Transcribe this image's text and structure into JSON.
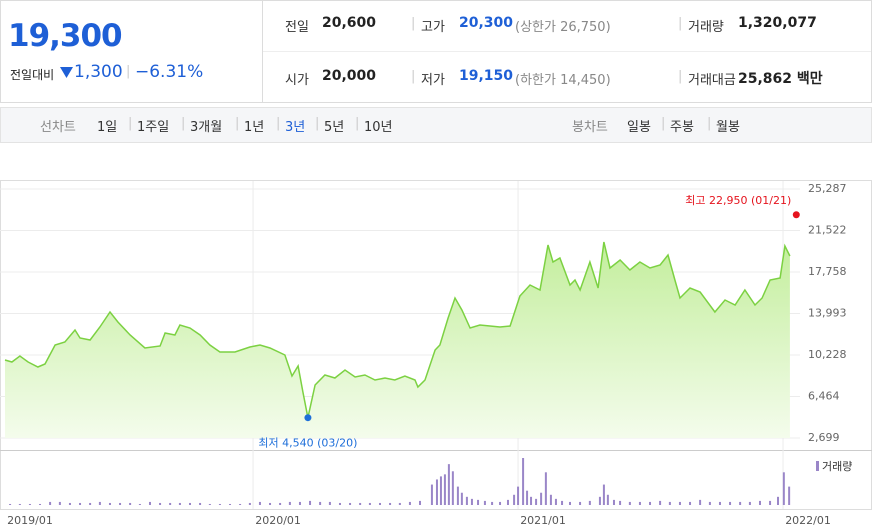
{
  "header": {
    "price": "19,300",
    "change_label": "전일대비",
    "change": "1,300",
    "change_pct": "−6.31%"
  },
  "quotes": [
    [
      {
        "label": "전일",
        "value": "20,600"
      },
      {
        "label": "고가",
        "value": "20,300",
        "limit": "(상한가 26,750)"
      },
      {
        "label": "거래량",
        "value": "1,320,077"
      }
    ],
    [
      {
        "label": "시가",
        "value": "20,000"
      },
      {
        "label": "저가",
        "value": "19,150",
        "limit": "(하한가 14,450)"
      },
      {
        "label": "거래대금",
        "value": "25,862 백만"
      }
    ]
  ],
  "tabs": {
    "line_label": "선차트",
    "line_options": [
      "1일",
      "1주일",
      "3개월",
      "1년",
      "3년",
      "5년",
      "10년"
    ],
    "selected": 4,
    "candle_label": "봉차트",
    "candle_options": [
      "일봉",
      "주봉",
      "월봉"
    ]
  },
  "chart_data": [
    {
      "type": "line",
      "color": "#7cd142",
      "xlim": [
        2019.045,
        2022.064
      ],
      "xticks": [
        {
          "value": 2019,
          "label": "2019/01"
        },
        {
          "value": 2020,
          "label": "2020/01"
        },
        {
          "value": 2021,
          "label": "2021/01"
        },
        {
          "value": 2022,
          "label": "2022/01"
        }
      ],
      "ylim": [
        2699,
        25287
      ],
      "yticks": [
        {
          "value": 25287,
          "label": "25,287"
        },
        {
          "value": 21522,
          "label": "21,522"
        },
        {
          "value": 17758,
          "label": "17,758"
        },
        {
          "value": 13993,
          "label": "13,993"
        },
        {
          "value": 10228,
          "label": "10,228"
        },
        {
          "value": 6464,
          "label": "6,464"
        },
        {
          "value": 2699,
          "label": "2,699"
        }
      ],
      "grid": true,
      "x": [
        2019.064,
        2019.09,
        2019.12,
        2019.151,
        2019.188,
        2019.215,
        2019.253,
        2019.29,
        2019.328,
        2019.347,
        2019.385,
        2019.422,
        2019.46,
        2019.49,
        2019.536,
        2019.592,
        2019.649,
        2019.668,
        2019.705,
        2019.724,
        2019.762,
        2019.8,
        2019.837,
        2019.875,
        2019.932,
        2019.988,
        2020.026,
        2020.064,
        2020.12,
        2020.147,
        2020.17,
        2020.188,
        2020.207,
        2020.234,
        2020.271,
        2020.309,
        2020.347,
        2020.385,
        2020.422,
        2020.46,
        2020.498,
        2020.535,
        2020.573,
        2020.611,
        2020.622,
        2020.649,
        2020.687,
        2020.705,
        2020.736,
        2020.762,
        2020.788,
        2020.819,
        2020.856,
        2020.894,
        2020.932,
        2020.97,
        2021.007,
        2021.045,
        2021.083,
        2021.113,
        2021.132,
        2021.158,
        2021.196,
        2021.215,
        2021.234,
        2021.271,
        2021.302,
        2021.324,
        2021.347,
        2021.385,
        2021.422,
        2021.46,
        2021.498,
        2021.536,
        2021.566,
        2021.592,
        2021.611,
        2021.649,
        2021.687,
        2021.743,
        2021.781,
        2021.819,
        2021.856,
        2021.894,
        2021.921,
        2021.951,
        2021.989,
        2022.007,
        2022.026
      ],
      "values": [
        9776,
        9594,
        10138,
        9594,
        9141,
        9413,
        11136,
        11408,
        12497,
        11771,
        11590,
        12769,
        14130,
        13223,
        12043,
        10864,
        11046,
        12225,
        12043,
        12950,
        12678,
        12043,
        11136,
        10501,
        10501,
        10955,
        11136,
        10864,
        10229,
        8324,
        9231,
        6873,
        4540,
        7508,
        8415,
        8143,
        8869,
        8234,
        8415,
        7961,
        8143,
        7961,
        8324,
        7961,
        7326,
        7961,
        10683,
        11136,
        13585,
        15400,
        14311,
        12678,
        12950,
        12860,
        12769,
        12860,
        15581,
        16579,
        16125,
        20207,
        18665,
        19028,
        16579,
        17033,
        16125,
        18665,
        16307,
        20479,
        18121,
        18846,
        17939,
        18665,
        18121,
        18393,
        19300,
        17033,
        15400,
        16307,
        15944,
        14130,
        15218,
        14765,
        16125,
        14765,
        15400,
        17033,
        17214,
        20117,
        19210
      ],
      "annotations": [
        {
          "text": "최고 22,950 (01/21)",
          "x": 2022.05,
          "y": 22950,
          "color": "#e5141e"
        },
        {
          "text": "최저 4,540 (03/20)",
          "x": 2020.207,
          "y": 4540,
          "color": "#1e6fd9"
        }
      ]
    },
    {
      "type": "bar",
      "series": [
        {
          "name": "거래량",
          "color": "#9a86c8",
          "x": [
            2019.083,
            2019.12,
            2019.158,
            2019.196,
            2019.234,
            2019.271,
            2019.309,
            2019.347,
            2019.385,
            2019.422,
            2019.46,
            2019.498,
            2019.536,
            2019.573,
            2019.611,
            2019.649,
            2019.687,
            2019.724,
            2019.762,
            2019.8,
            2019.837,
            2019.875,
            2019.913,
            2019.951,
            2019.988,
            2020.026,
            2020.064,
            2020.102,
            2020.139,
            2020.177,
            2020.215,
            2020.253,
            2020.29,
            2020.328,
            2020.366,
            2020.404,
            2020.441,
            2020.479,
            2020.517,
            2020.554,
            2020.592,
            2020.63,
            2020.675,
            2020.694,
            2020.709,
            2020.724,
            2020.739,
            2020.754,
            2020.773,
            2020.788,
            2020.807,
            2020.826,
            2020.849,
            2020.875,
            2020.902,
            2020.932,
            2020.962,
            2020.985,
            2021.0,
            2021.019,
            2021.034,
            2021.049,
            2021.068,
            2021.087,
            2021.105,
            2021.124,
            2021.143,
            2021.166,
            2021.196,
            2021.234,
            2021.271,
            2021.309,
            2021.324,
            2021.339,
            2021.362,
            2021.385,
            2021.422,
            2021.46,
            2021.498,
            2021.536,
            2021.573,
            2021.611,
            2021.649,
            2021.687,
            2021.724,
            2021.762,
            2021.8,
            2021.838,
            2021.875,
            2021.913,
            2021.951,
            2021.981,
            2022.003,
            2022.023
          ],
          "values": [
            170000,
            170000,
            170000,
            170000,
            510000,
            510000,
            340000,
            340000,
            340000,
            510000,
            340000,
            340000,
            340000,
            170000,
            510000,
            340000,
            340000,
            340000,
            340000,
            340000,
            170000,
            170000,
            170000,
            170000,
            340000,
            510000,
            340000,
            340000,
            510000,
            510000,
            680000,
            510000,
            510000,
            340000,
            340000,
            340000,
            340000,
            340000,
            340000,
            340000,
            510000,
            680000,
            3400000,
            4250000,
            4760000,
            5100000,
            6800000,
            5610000,
            3060000,
            2040000,
            1360000,
            1020000,
            850000,
            680000,
            510000,
            510000,
            850000,
            1700000,
            3060000,
            7820000,
            2380000,
            1360000,
            1020000,
            2040000,
            5440000,
            1700000,
            1020000,
            680000,
            510000,
            510000,
            680000,
            1360000,
            3400000,
            1700000,
            850000,
            680000,
            510000,
            510000,
            510000,
            680000,
            510000,
            510000,
            510000,
            850000,
            510000,
            510000,
            510000,
            510000,
            510000,
            680000,
            680000,
            1360000,
            5440000,
            3060000
          ]
        }
      ]
    }
  ]
}
